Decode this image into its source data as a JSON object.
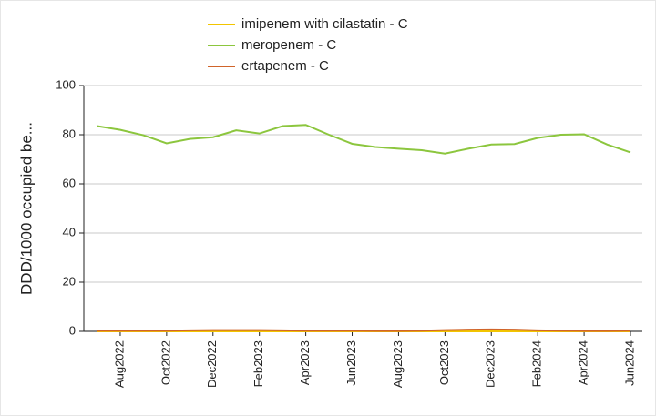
{
  "chart_data": {
    "type": "line",
    "ylabel": "DDD/1000  occupied  be...",
    "categories": [
      null,
      "Aug2022",
      null,
      "Oct2022",
      null,
      "Dec2022",
      null,
      "Feb2023",
      null,
      "Apr2023",
      null,
      "Jun2023",
      null,
      "Aug2023",
      null,
      "Oct2023",
      null,
      "Dec2023",
      null,
      "Feb2024",
      null,
      "Apr2024",
      null,
      "Jun2024"
    ],
    "series": [
      {
        "name": "imipenem with cilastatin - C",
        "color": "#f2c500",
        "values": [
          0,
          0,
          0,
          0,
          0,
          0,
          0,
          0,
          0,
          0,
          0,
          0,
          0,
          0,
          0,
          0,
          0,
          0,
          0,
          0,
          0,
          0,
          0,
          0
        ]
      },
      {
        "name": "meropenem - C",
        "color": "#8cc63e",
        "values": [
          83.5,
          82,
          79.8,
          76.5,
          78.3,
          79,
          81.8,
          80.5,
          83.5,
          84,
          80,
          76.3,
          75,
          74.3,
          73.7,
          72.3,
          74.3,
          76,
          76.2,
          78.7,
          80,
          80.2,
          76,
          72.8
        ]
      },
      {
        "name": "ertapenem - C",
        "color": "#d0642a",
        "values": [
          0.3,
          0.3,
          0.3,
          0.3,
          0.4,
          0.5,
          0.5,
          0.5,
          0.4,
          0.3,
          0.3,
          0.3,
          0.2,
          0.2,
          0.3,
          0.5,
          0.7,
          0.8,
          0.7,
          0.4,
          0.3,
          0.2,
          0.2,
          0.3
        ]
      }
    ],
    "ylim": [
      0,
      100
    ],
    "yticks": [
      0,
      20,
      40,
      60,
      80,
      100
    ],
    "grid": true
  }
}
